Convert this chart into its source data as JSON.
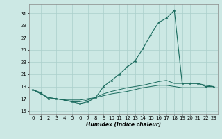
{
  "xlabel": "Humidex (Indice chaleur)",
  "x": [
    0,
    1,
    2,
    3,
    4,
    5,
    6,
    7,
    8,
    9,
    10,
    11,
    12,
    13,
    14,
    15,
    16,
    17,
    18,
    19,
    20,
    21,
    22,
    23
  ],
  "line1": [
    18.5,
    18.0,
    17.0,
    17.0,
    16.8,
    16.5,
    16.2,
    16.5,
    17.2,
    19.0,
    20.0,
    21.0,
    22.2,
    23.2,
    25.2,
    27.5,
    29.5,
    30.2,
    31.5,
    19.5,
    19.5,
    19.5,
    19.0,
    19.0
  ],
  "line2": [
    18.5,
    17.8,
    17.2,
    17.0,
    16.8,
    16.5,
    16.5,
    16.8,
    17.2,
    17.8,
    18.2,
    18.5,
    18.8,
    19.0,
    19.2,
    19.5,
    19.8,
    20.0,
    19.5,
    19.5,
    19.5,
    19.5,
    19.2,
    19.0
  ],
  "line3": [
    18.5,
    17.8,
    17.2,
    17.0,
    16.8,
    16.8,
    16.8,
    17.0,
    17.2,
    17.5,
    17.8,
    18.0,
    18.2,
    18.5,
    18.8,
    19.0,
    19.2,
    19.2,
    19.0,
    18.8,
    18.8,
    18.8,
    18.8,
    18.8
  ],
  "line_color": "#1a6b5e",
  "bg_color": "#cce8e4",
  "grid_color": "#aacfcb",
  "ylim": [
    14.5,
    32.5
  ],
  "xlim": [
    -0.5,
    23.5
  ],
  "yticks": [
    15,
    17,
    19,
    21,
    23,
    25,
    27,
    29,
    31
  ],
  "xticks": [
    0,
    1,
    2,
    3,
    4,
    5,
    6,
    7,
    8,
    9,
    10,
    11,
    12,
    13,
    14,
    15,
    16,
    17,
    18,
    19,
    20,
    21,
    22,
    23
  ]
}
